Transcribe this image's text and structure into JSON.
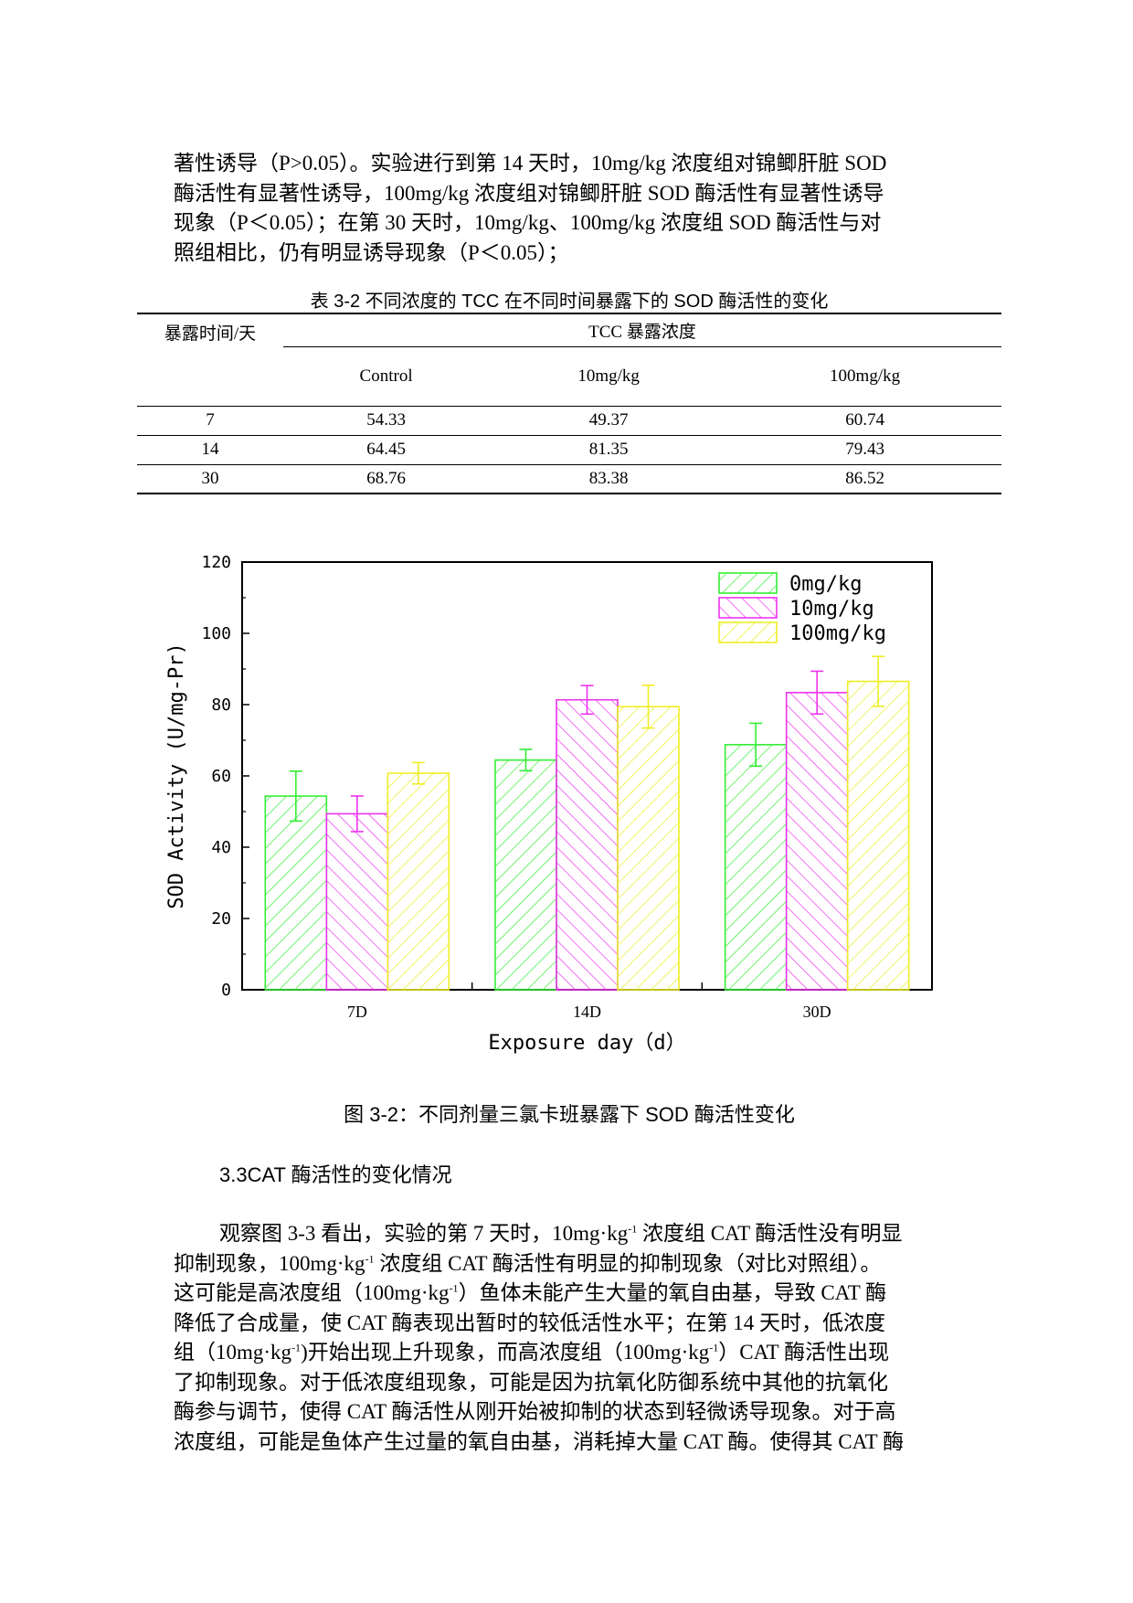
{
  "top_paragraph": [
    "著性诱导（P>0.05）。实验进行到第 14 天时，10mg/kg 浓度组对锦鲫肝脏 SOD",
    "酶活性有显著性诱导，100mg/kg 浓度组对锦鲫肝脏 SOD 酶活性有显著性诱导",
    "现象（P＜0.05）；在第 30 天时，10mg/kg、100mg/kg 浓度组 SOD 酶活性与对",
    "照组相比，仍有明显诱导现象（P＜0.05）；"
  ],
  "table": {
    "caption": "表 3-2 不同浓度的 TCC 在不同时间暴露下的 SOD 酶活性的变化",
    "row_header": "暴露时间/天",
    "group_header": "TCC 暴露浓度",
    "columns": [
      "Control",
      "10mg/kg",
      "100mg/kg"
    ],
    "rows": [
      {
        "day": "7",
        "values": [
          "54.33",
          "49.37",
          "60.74"
        ]
      },
      {
        "day": "14",
        "values": [
          "64.45",
          "81.35",
          "79.43"
        ]
      },
      {
        "day": "30",
        "values": [
          "68.76",
          "83.38",
          "86.52"
        ]
      }
    ]
  },
  "chart_data": {
    "type": "bar",
    "categories": [
      "7D",
      "14D",
      "30D"
    ],
    "series": [
      {
        "name": "0mg/kg",
        "values": [
          54.33,
          64.45,
          68.76
        ],
        "errors": [
          7,
          3,
          6
        ],
        "color": "#33ee33"
      },
      {
        "name": "10mg/kg",
        "values": [
          49.37,
          81.35,
          83.38
        ],
        "errors": [
          5,
          4,
          6
        ],
        "color": "#ee33ee"
      },
      {
        "name": "100mg/kg",
        "values": [
          60.74,
          79.43,
          86.52
        ],
        "errors": [
          3,
          6,
          7
        ],
        "color": "#eeee22"
      }
    ],
    "xlabel": "Exposure day（d）",
    "ylabel": "SOD Activity (U/mg-Pr)",
    "ylim": [
      0,
      120
    ],
    "yticks": [
      0,
      20,
      40,
      60,
      80,
      100,
      120
    ],
    "legend_position": "top-right",
    "grid": false
  },
  "figure_caption": "图 3-2：不同剂量三氯卡班暴露下 SOD 酶活性变化",
  "section_heading": "3.3CAT 酶活性的变化情况",
  "body_paragraph": {
    "l1a": "观察图 3-3 看出，实验的第 7 天时，10mg·kg",
    "l1b": " 浓度组 CAT 酶活性没有明显",
    "l2a": "抑制现象，100mg·kg",
    "l2b": " 浓度组 CAT 酶活性有明显的抑制现象（对比对照组）。",
    "l3a": "这可能是高浓度组（100mg·kg",
    "l3b": "）鱼体未能产生大量的氧自由基，导致 CAT 酶",
    "l4": "降低了合成量，使 CAT 酶表现出暂时的较低活性水平；在第 14 天时，低浓度",
    "l5a": "组（10mg·kg",
    "l5b": ")开始出现上升现象，而高浓度组（100mg·kg",
    "l5c": "）CAT 酶活性出现",
    "l6": "了抑制现象。对于低浓度组现象，可能是因为抗氧化防御系统中其他的抗氧化",
    "l7": "酶参与调节，使得 CAT 酶活性从刚开始被抑制的状态到轻微诱导现象。对于高",
    "l8": "浓度组，可能是鱼体产生过量的氧自由基，消耗掉大量 CAT 酶。使得其 CAT 酶",
    "sup": "-1"
  }
}
